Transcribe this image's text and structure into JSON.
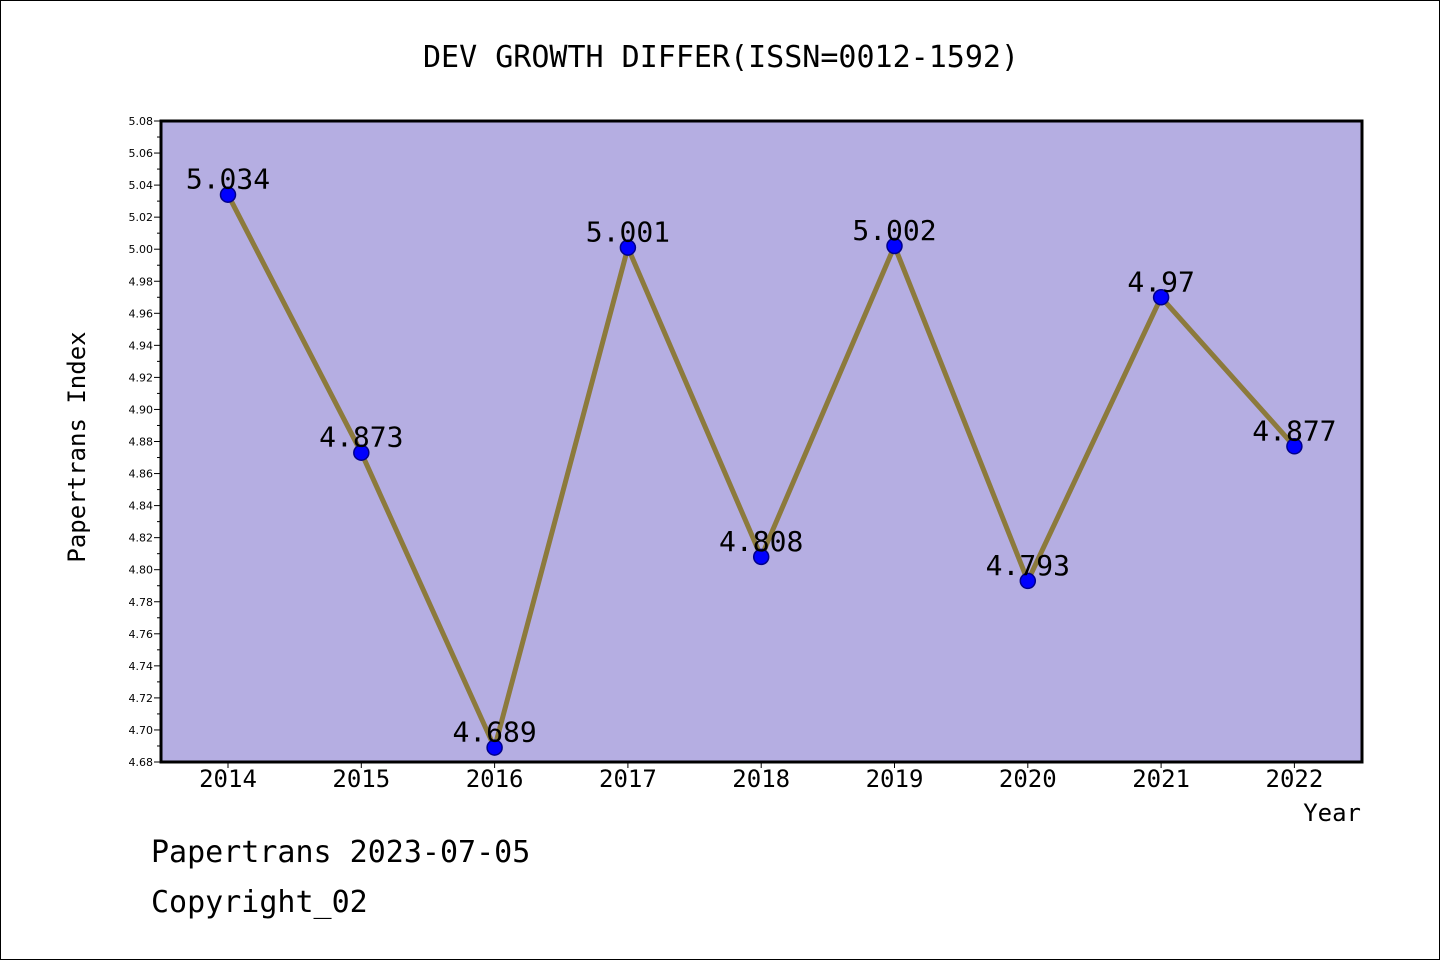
{
  "footer": {
    "line1": "Papertrans 2023-07-05",
    "line2": "Copyright_02"
  },
  "colors": {
    "plot_background": "#b5aee2",
    "line": "#8c7a3c",
    "marker": "#0000ff",
    "marker_edge": "#00008b"
  },
  "chart_data": {
    "type": "line",
    "title": "DEV GROWTH DIFFER(ISSN=0012-1592)",
    "xlabel": "Year",
    "ylabel": "Papertrans Index",
    "categories": [
      "2014",
      "2015",
      "2016",
      "2017",
      "2018",
      "2019",
      "2020",
      "2021",
      "2022"
    ],
    "series": [
      {
        "values": [
          5.034,
          4.873,
          4.689,
          5.001,
          4.808,
          5.002,
          4.793,
          4.97,
          4.877
        ],
        "labels": [
          "5.034",
          "4.873",
          "4.689",
          "5.001",
          "4.808",
          "5.002",
          "4.793",
          "4.97",
          "4.877"
        ]
      }
    ],
    "ylim": [
      4.68,
      5.08
    ],
    "yticks": [
      "4.68",
      "4.70",
      "4.72",
      "4.74",
      "4.76",
      "4.78",
      "4.80",
      "4.82",
      "4.84",
      "4.86",
      "4.88",
      "4.90",
      "4.92",
      "4.94",
      "4.96",
      "4.98",
      "5.00",
      "5.02",
      "5.04",
      "5.06",
      "5.08"
    ],
    "grid": false,
    "markers": true,
    "data_labels": true
  }
}
